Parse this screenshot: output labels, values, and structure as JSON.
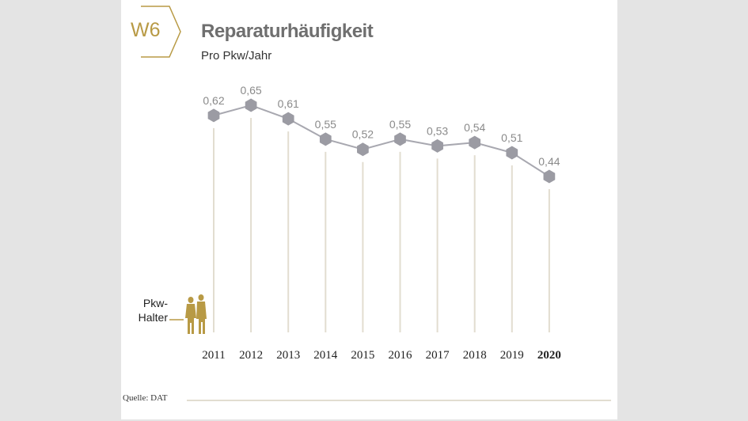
{
  "badge": "W6",
  "title": "Reparaturhäufigkeit",
  "subtitle": "Pro Pkw/Jahr",
  "holder_label_1": "Pkw-",
  "holder_label_2": "Halter",
  "source": "Quelle: DAT",
  "colors": {
    "accent": "#b89a45",
    "marker": "#9b9ba3",
    "line": "#a8a8b0",
    "stem": "#e2ddd0",
    "label": "#8a8a8a"
  },
  "chart_data": {
    "type": "line",
    "title": "Reparaturhäufigkeit",
    "subtitle": "Pro Pkw/Jahr",
    "categories": [
      "2011",
      "2012",
      "2013",
      "2014",
      "2015",
      "2016",
      "2017",
      "2018",
      "2019",
      "2020"
    ],
    "values": [
      0.62,
      0.65,
      0.61,
      0.55,
      0.52,
      0.55,
      0.53,
      0.54,
      0.51,
      0.44
    ],
    "value_labels": [
      "0,62",
      "0,65",
      "0,61",
      "0,55",
      "0,52",
      "0,55",
      "0,53",
      "0,54",
      "0,51",
      "0,44"
    ],
    "highlight_category": "2020",
    "xlabel": "",
    "ylabel": "",
    "grid": false
  }
}
